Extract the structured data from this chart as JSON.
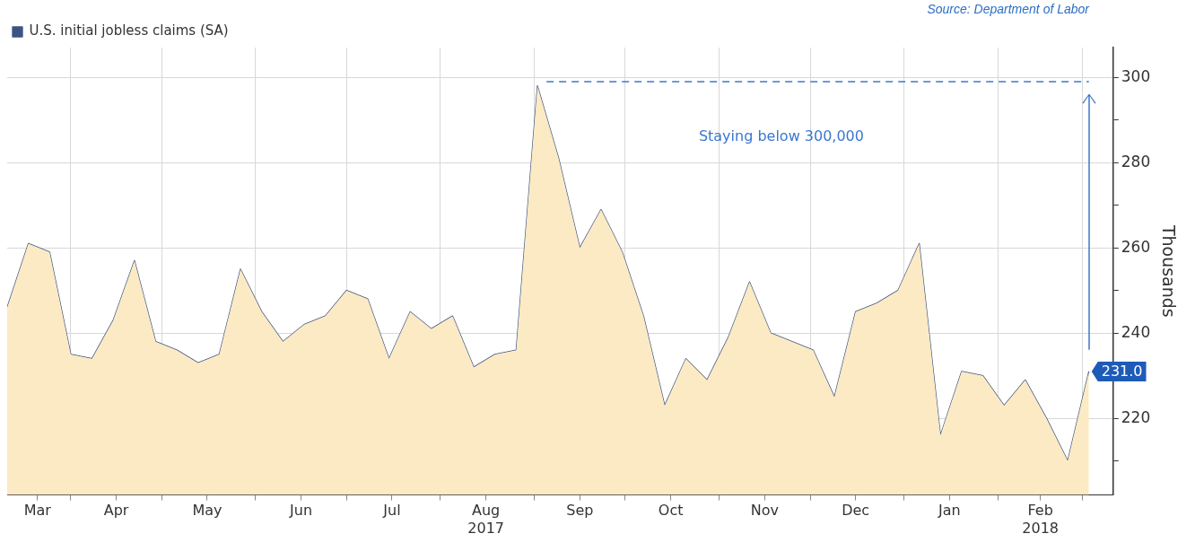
{
  "chart_data": {
    "type": "area",
    "legend": "top left",
    "grid": true,
    "ylabel": "Thousands",
    "annotations": [
      "Staying below 300,000",
      "Source: Department of Labor"
    ],
    "xlim": [
      "2017-03-11",
      "2018-03-11"
    ],
    "xticks": [
      {
        "value": "2017-03-21",
        "label": "Mar"
      },
      {
        "value": "2017-04-01",
        "label": null
      },
      {
        "value": "2017-04-16",
        "label": "Apr"
      },
      {
        "value": "2017-05-01",
        "label": null
      },
      {
        "value": "2017-05-16",
        "label": "May"
      },
      {
        "value": "2017-06-01",
        "label": null
      },
      {
        "value": "2017-06-16",
        "label": "Jun"
      },
      {
        "value": "2017-07-01",
        "label": null
      },
      {
        "value": "2017-07-16",
        "label": "Jul"
      },
      {
        "value": "2017-08-01",
        "label": null
      },
      {
        "value": "2017-08-16",
        "label": "Aug\n2017"
      },
      {
        "value": "2017-09-01",
        "label": null
      },
      {
        "value": "2017-09-16",
        "label": "Sep"
      },
      {
        "value": "2017-10-01",
        "label": null
      },
      {
        "value": "2017-10-16",
        "label": "Oct"
      },
      {
        "value": "2017-11-01",
        "label": null
      },
      {
        "value": "2017-11-16",
        "label": "Nov"
      },
      {
        "value": "2017-12-01",
        "label": null
      },
      {
        "value": "2017-12-16",
        "label": "Dec"
      },
      {
        "value": "2018-01-01",
        "label": null
      },
      {
        "value": "2018-01-16",
        "label": "Jan"
      },
      {
        "value": "2018-02-01",
        "label": null
      },
      {
        "value": "2018-02-15",
        "label": "Feb\n2018"
      },
      {
        "value": "2018-03-01",
        "label": null
      }
    ],
    "ylim": [
      202,
      307
    ],
    "yticks": [
      {
        "value": 210,
        "label": null
      },
      220,
      {
        "value": 230,
        "label": null
      },
      240,
      {
        "value": 250,
        "label": null
      },
      260,
      {
        "value": 270,
        "label": null
      },
      280,
      {
        "value": 290,
        "label": null
      },
      300
    ],
    "series": [
      {
        "color": "#fbeac4",
        "x": [
          "2017-03-11",
          "2017-03-18",
          "2017-03-25",
          "2017-04-01",
          "2017-04-08",
          "2017-04-15",
          "2017-04-22",
          "2017-04-29",
          "2017-05-06",
          "2017-05-13",
          "2017-05-20",
          "2017-05-27",
          "2017-06-03",
          "2017-06-10",
          "2017-06-17",
          "2017-06-24",
          "2017-07-01",
          "2017-07-08",
          "2017-07-15",
          "2017-07-22",
          "2017-07-29",
          "2017-08-05",
          "2017-08-12",
          "2017-08-19",
          "2017-08-26",
          "2017-09-02",
          "2017-09-09",
          "2017-09-16",
          "2017-09-23",
          "2017-09-30",
          "2017-10-07",
          "2017-10-14",
          "2017-10-21",
          "2017-10-28",
          "2017-11-04",
          "2017-11-11",
          "2017-11-18",
          "2017-11-25",
          "2017-12-02",
          "2017-12-09",
          "2017-12-16",
          "2017-12-23",
          "2017-12-30",
          "2018-01-06",
          "2018-01-13",
          "2018-01-20",
          "2018-01-27",
          "2018-02-03",
          "2018-02-10",
          "2018-02-17",
          "2018-02-24",
          "2018-03-03"
        ],
        "values": [
          246,
          261,
          259,
          235,
          234,
          243,
          257,
          238,
          236,
          233,
          235,
          255,
          245,
          238,
          242,
          244,
          250,
          248,
          234,
          245,
          241,
          244,
          232,
          235,
          236,
          298,
          281,
          260,
          269,
          259,
          244,
          223,
          234,
          229,
          239,
          252,
          240,
          238,
          236,
          225,
          245,
          247,
          250,
          261,
          216,
          231,
          230,
          223,
          229,
          220,
          210,
          231
        ]
      },
      {
        "type": "line",
        "name": "U.S. initial jobless claims (SA)",
        "color": "#3d5482",
        "x": [
          "2017-03-11",
          "2017-03-18",
          "2017-03-25",
          "2017-04-01",
          "2017-04-08",
          "2017-04-15",
          "2017-04-22",
          "2017-04-29",
          "2017-05-06",
          "2017-05-13",
          "2017-05-20",
          "2017-05-27",
          "2017-06-03",
          "2017-06-10",
          "2017-06-17",
          "2017-06-24",
          "2017-07-01",
          "2017-07-08",
          "2017-07-15",
          "2017-07-22",
          "2017-07-29",
          "2017-08-05",
          "2017-08-12",
          "2017-08-19",
          "2017-08-26",
          "2017-09-02",
          "2017-09-09",
          "2017-09-16",
          "2017-09-23",
          "2017-09-30",
          "2017-10-07",
          "2017-10-14",
          "2017-10-21",
          "2017-10-28",
          "2017-11-04",
          "2017-11-11",
          "2017-11-18",
          "2017-11-25",
          "2017-12-02",
          "2017-12-09",
          "2017-12-16",
          "2017-12-23",
          "2017-12-30",
          "2018-01-06",
          "2018-01-13",
          "2018-01-20",
          "2018-01-27",
          "2018-02-03",
          "2018-02-10",
          "2018-02-17",
          "2018-02-24",
          "2018-03-03"
        ],
        "values": [
          246,
          261,
          259,
          235,
          234,
          243,
          257,
          238,
          236,
          233,
          235,
          255,
          245,
          238,
          242,
          244,
          250,
          248,
          234,
          245,
          241,
          244,
          232,
          235,
          236,
          298,
          281,
          260,
          269,
          259,
          244,
          223,
          234,
          229,
          239,
          252,
          240,
          238,
          236,
          225,
          245,
          247,
          250,
          261,
          216,
          231,
          230,
          223,
          229,
          220,
          210,
          231
        ],
        "value_labels": [
          null,
          null,
          null,
          null,
          null,
          null,
          null,
          null,
          null,
          null,
          null,
          null,
          null,
          null,
          null,
          null,
          null,
          null,
          null,
          null,
          null,
          null,
          null,
          null,
          null,
          null,
          null,
          null,
          null,
          null,
          null,
          null,
          null,
          null,
          null,
          null,
          null,
          null,
          null,
          null,
          null,
          null,
          null,
          null,
          null,
          null,
          null,
          null,
          null,
          null,
          null,
          "231.0"
        ]
      },
      {
        "type": "line",
        "color": "#3a78d0",
        "line_style": "dashed",
        "x": [
          "2017-09-05",
          "2018-03-03"
        ],
        "values": [
          299,
          299
        ]
      }
    ]
  }
}
